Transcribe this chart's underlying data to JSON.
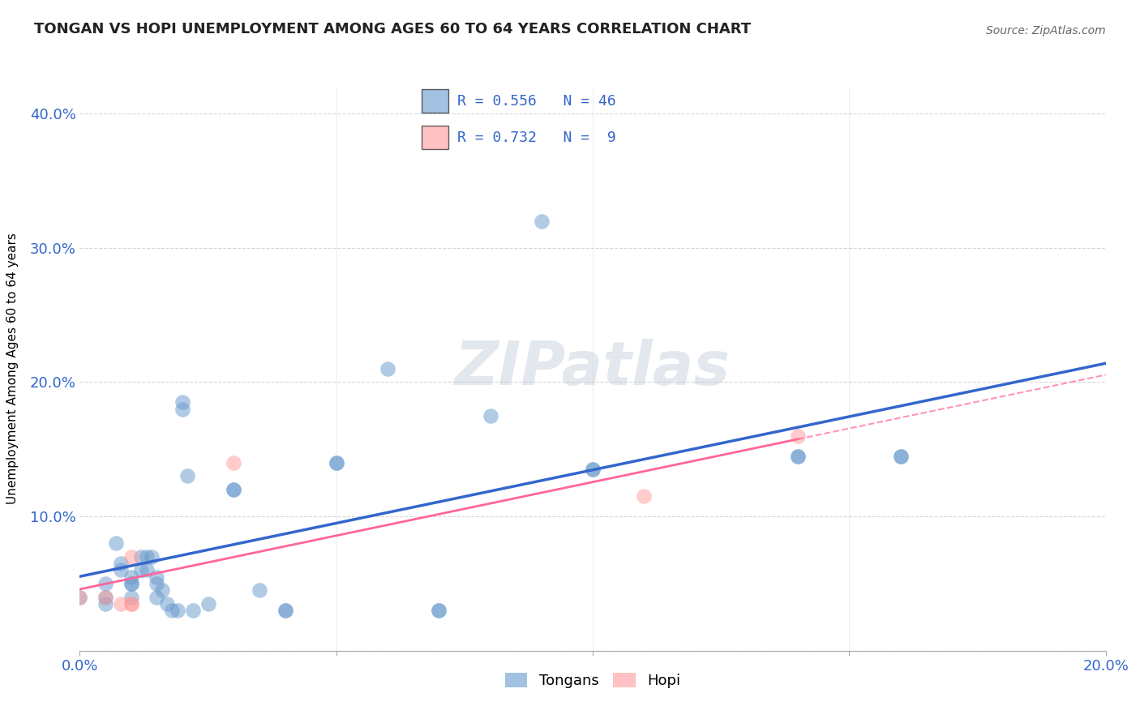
{
  "title": "TONGAN VS HOPI UNEMPLOYMENT AMONG AGES 60 TO 64 YEARS CORRELATION CHART",
  "source": "Source: ZipAtlas.com",
  "ylabel": "Unemployment Among Ages 60 to 64 years",
  "xlim": [
    0.0,
    0.2
  ],
  "ylim": [
    0.0,
    0.42
  ],
  "xticks": [
    0.0,
    0.05,
    0.1,
    0.15,
    0.2
  ],
  "yticks": [
    0.0,
    0.1,
    0.2,
    0.3,
    0.4
  ],
  "watermark": "ZIPatlas",
  "legend_labels": [
    "Tongans",
    "Hopi"
  ],
  "tongan_R": "0.556",
  "tongan_N": "46",
  "hopi_R": "0.732",
  "hopi_N": "9",
  "blue_color": "#6699CC",
  "pink_color": "#FF9999",
  "blue_line_color": "#3366CC",
  "pink_line_color": "#FF6699",
  "tongan_x": [
    0.0,
    0.005,
    0.005,
    0.005,
    0.007,
    0.008,
    0.008,
    0.01,
    0.01,
    0.01,
    0.01,
    0.012,
    0.012,
    0.013,
    0.013,
    0.014,
    0.015,
    0.015,
    0.015,
    0.016,
    0.017,
    0.018,
    0.019,
    0.02,
    0.02,
    0.021,
    0.022,
    0.025,
    0.03,
    0.03,
    0.035,
    0.04,
    0.04,
    0.05,
    0.05,
    0.06,
    0.07,
    0.07,
    0.08,
    0.09,
    0.1,
    0.1,
    0.14,
    0.14,
    0.16,
    0.16
  ],
  "tongan_y": [
    0.04,
    0.05,
    0.04,
    0.035,
    0.08,
    0.065,
    0.06,
    0.055,
    0.05,
    0.05,
    0.04,
    0.07,
    0.06,
    0.07,
    0.06,
    0.07,
    0.055,
    0.05,
    0.04,
    0.045,
    0.035,
    0.03,
    0.03,
    0.18,
    0.185,
    0.13,
    0.03,
    0.035,
    0.12,
    0.12,
    0.045,
    0.03,
    0.03,
    0.14,
    0.14,
    0.21,
    0.03,
    0.03,
    0.175,
    0.32,
    0.135,
    0.135,
    0.145,
    0.145,
    0.145,
    0.145
  ],
  "hopi_x": [
    0.0,
    0.005,
    0.008,
    0.01,
    0.01,
    0.01,
    0.03,
    0.11,
    0.14
  ],
  "hopi_y": [
    0.04,
    0.04,
    0.035,
    0.035,
    0.035,
    0.07,
    0.14,
    0.115,
    0.16
  ]
}
